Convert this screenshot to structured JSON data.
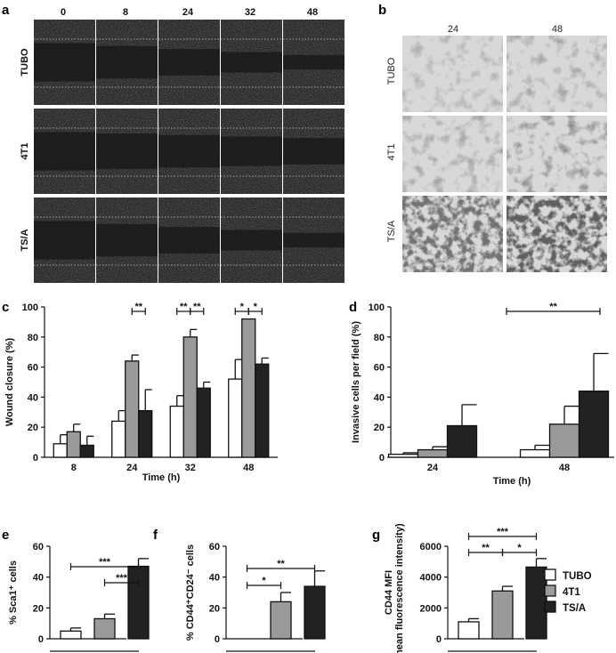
{
  "panel_labels": {
    "a": "a",
    "b": "b",
    "c": "c",
    "d": "d",
    "e": "e",
    "f": "f",
    "g": "g"
  },
  "panel_a": {
    "time_labels": [
      "0",
      "8",
      "24",
      "32",
      "48"
    ],
    "row_labels": [
      "TUBO",
      "4T1",
      "TS/A"
    ]
  },
  "panel_b": {
    "time_labels": [
      "24",
      "48"
    ],
    "row_labels": [
      "TUBO",
      "4T1",
      "TS/A"
    ]
  },
  "colors": {
    "TUBO": "#ffffff",
    "4T1": "#9a9a9a",
    "TS/A": "#222222"
  },
  "legend": [
    "TUBO",
    "4T1",
    "TS/A"
  ],
  "chart_data": [
    {
      "id": "c",
      "type": "bar",
      "xlabel": "Time (h)",
      "ylabel": "Wound closure (%)",
      "ylim": [
        0,
        100
      ],
      "yticks": [
        0,
        20,
        40,
        60,
        80,
        100
      ],
      "categories": [
        "8",
        "24",
        "32",
        "48"
      ],
      "series": [
        {
          "name": "TUBO",
          "values": [
            9,
            24,
            34,
            52
          ],
          "errors": [
            6,
            7,
            7,
            13
          ]
        },
        {
          "name": "4T1",
          "values": [
            17,
            64,
            80,
            92
          ],
          "errors": [
            5,
            4,
            5,
            0
          ]
        },
        {
          "name": "TS/A",
          "values": [
            8,
            31,
            46,
            62
          ],
          "errors": [
            6,
            14,
            4,
            4
          ]
        }
      ],
      "annotations": [
        {
          "group": 1,
          "from": 1,
          "to": 2,
          "text": "**"
        },
        {
          "group": 2,
          "from": 0,
          "to": 1,
          "text": "**"
        },
        {
          "group": 2,
          "from": 1,
          "to": 2,
          "text": "**"
        },
        {
          "group": 3,
          "from": 0,
          "to": 1,
          "text": "*"
        },
        {
          "group": 3,
          "from": 1,
          "to": 2,
          "text": "*"
        }
      ]
    },
    {
      "id": "d",
      "type": "bar",
      "xlabel": "Time (h)",
      "ylabel": "Invasive cells per field (%)",
      "ylim": [
        0,
        100
      ],
      "yticks": [
        0,
        20,
        40,
        60,
        80,
        100
      ],
      "categories": [
        "24",
        "48"
      ],
      "series": [
        {
          "name": "TUBO",
          "values": [
            2,
            5
          ],
          "errors": [
            1,
            3
          ]
        },
        {
          "name": "4T1",
          "values": [
            5,
            22
          ],
          "errors": [
            2,
            12
          ]
        },
        {
          "name": "TS/A",
          "values": [
            21,
            44
          ],
          "errors": [
            14,
            25
          ]
        }
      ],
      "annotations": [
        {
          "text": "**"
        }
      ]
    },
    {
      "id": "e",
      "type": "bar",
      "ylabel": "% Sca1⁺ cells",
      "ylim": [
        0,
        60
      ],
      "yticks": [
        0,
        20,
        40,
        60
      ],
      "categories": [
        "TUBO",
        "4T1",
        "TS/A"
      ],
      "values": [
        5,
        13,
        47
      ],
      "errors": [
        2,
        3,
        5
      ],
      "annotations": [
        {
          "text": "***"
        },
        {
          "text": "***"
        }
      ]
    },
    {
      "id": "f",
      "type": "bar",
      "ylabel": "% CD44⁺CD24⁻ cells",
      "ylim": [
        0,
        60
      ],
      "yticks": [
        0,
        20,
        40,
        60
      ],
      "categories": [
        "TUBO",
        "4T1",
        "TS/A"
      ],
      "values": [
        0,
        24,
        34
      ],
      "errors": [
        0,
        6,
        10
      ],
      "annotations": [
        {
          "text": "*"
        },
        {
          "text": "**"
        }
      ]
    },
    {
      "id": "g",
      "type": "bar",
      "ylabel": "CD44 MFI",
      "ylabel2": "(mean fluorescence intensity)",
      "ylim": [
        0,
        6000
      ],
      "yticks": [
        0,
        2000,
        4000,
        6000
      ],
      "categories": [
        "TUBO",
        "4T1",
        "TS/A"
      ],
      "values": [
        1100,
        3100,
        4650
      ],
      "errors": [
        200,
        300,
        550
      ],
      "annotations": [
        {
          "text": "***"
        },
        {
          "text": "**"
        },
        {
          "text": "*"
        }
      ]
    }
  ]
}
